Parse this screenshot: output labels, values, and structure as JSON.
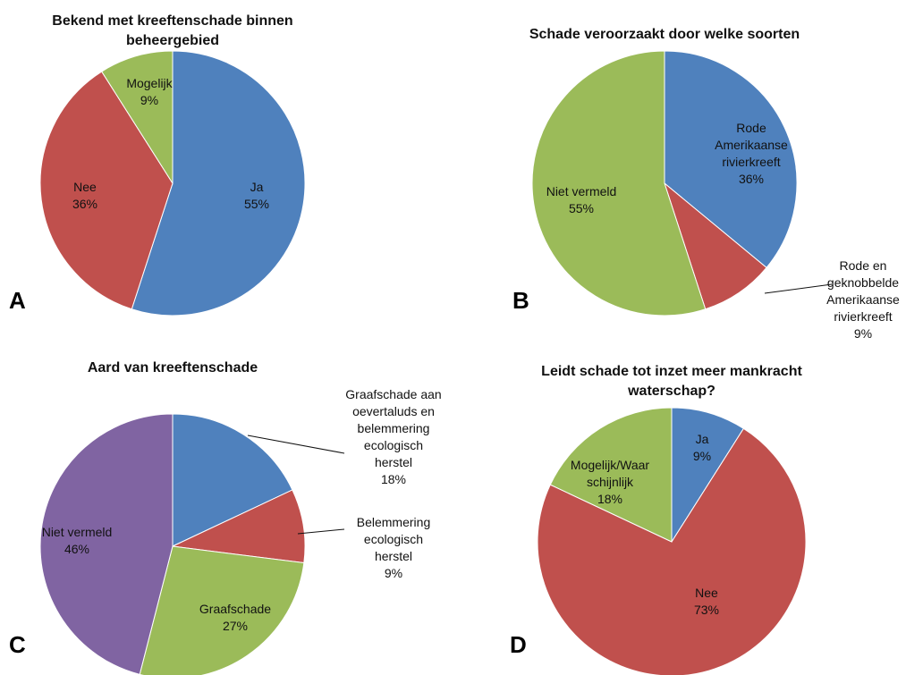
{
  "chart_data": [
    {
      "panel": "A",
      "type": "pie",
      "title": [
        "Bekend met kreeftenschade binnen",
        "beheergebied"
      ],
      "slices": [
        {
          "label": [
            "Ja",
            "55%"
          ],
          "value": 55,
          "color": "#4F81BD"
        },
        {
          "label": [
            "Nee",
            "36%"
          ],
          "value": 36,
          "color": "#C0504D"
        },
        {
          "label": [
            "Mogelijk",
            "9%"
          ],
          "value": 9,
          "color": "#9BBB59"
        }
      ]
    },
    {
      "panel": "B",
      "type": "pie",
      "title": [
        "Schade veroorzaakt door welke soorten"
      ],
      "slices": [
        {
          "label": [
            "Rode",
            "Amerikaanse",
            "rivierkreeft",
            "36%"
          ],
          "value": 36,
          "color": "#4F81BD"
        },
        {
          "label": [
            "Rode en",
            "geknobbelde",
            "Amerikaanse",
            "rivierkreeft",
            "9%"
          ],
          "value": 9,
          "color": "#C0504D"
        },
        {
          "label": [
            "Niet vermeld",
            "55%"
          ],
          "value": 55,
          "color": "#9BBB59"
        }
      ]
    },
    {
      "panel": "C",
      "type": "pie",
      "title": [
        "Aard van kreeftenschade"
      ],
      "slices": [
        {
          "label": [
            "Graafschade aan",
            "oevertaluds en",
            "belemmering",
            "ecologisch",
            "herstel",
            "18%"
          ],
          "value": 18,
          "color": "#4F81BD"
        },
        {
          "label": [
            "Belemmering",
            "ecologisch",
            "herstel",
            "9%"
          ],
          "value": 9,
          "color": "#C0504D"
        },
        {
          "label": [
            "Graafschade",
            "27%"
          ],
          "value": 27,
          "color": "#9BBB59"
        },
        {
          "label": [
            "Niet vermeld",
            "46%"
          ],
          "value": 46,
          "color": "#8064A2"
        }
      ]
    },
    {
      "panel": "D",
      "type": "pie",
      "title": [
        "Leidt schade tot inzet meer mankracht",
        "waterschap?"
      ],
      "slices": [
        {
          "label": [
            "Ja",
            "9%"
          ],
          "value": 9,
          "color": "#4F81BD"
        },
        {
          "label": [
            "Nee",
            "73%"
          ],
          "value": 73,
          "color": "#C0504D"
        },
        {
          "label": [
            "Mogelijk/Waar",
            "schijnlijk",
            "18%"
          ],
          "value": 18,
          "color": "#9BBB59"
        }
      ]
    }
  ]
}
